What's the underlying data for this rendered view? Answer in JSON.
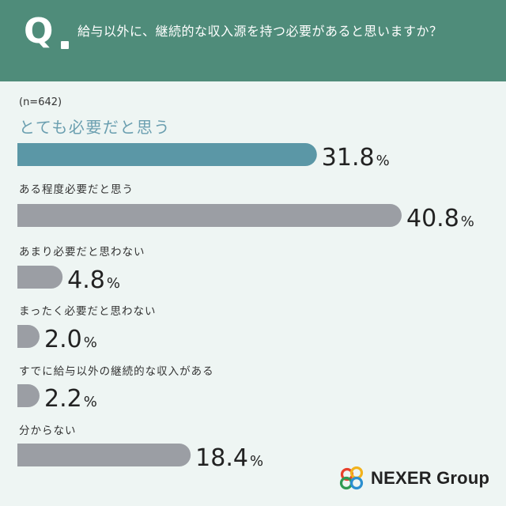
{
  "header": {
    "q_label": "Q",
    "question": "給与以外に、継続的な収入源を持つ必要があると思いますか？"
  },
  "sample_size": "(n=642)",
  "brand": {
    "logo_text": "NEXER Group"
  },
  "colors": {
    "header_bg": "#4f8c7a",
    "page_bg": "#eef5f3",
    "highlight_bar": "#5b97a6",
    "bar": "#9b9ea4",
    "highlight_label": "#6b9fb0",
    "label": "#333333",
    "value": "#222222"
  },
  "chart_data": {
    "type": "bar",
    "orientation": "horizontal",
    "categories": [
      "とても必要だと思う",
      "ある程度必要だと思う",
      "あまり必要だと思わない",
      "まったく必要だと思わない",
      "すでに給与以外の継続的な収入がある",
      "分からない"
    ],
    "values": [
      31.8,
      40.8,
      4.8,
      2.0,
      2.2,
      18.4
    ],
    "value_labels": [
      "31.8",
      "40.8",
      "4.8",
      "2.0",
      "2.2",
      "18.4"
    ],
    "unit": "%",
    "highlight_index": 0
  }
}
